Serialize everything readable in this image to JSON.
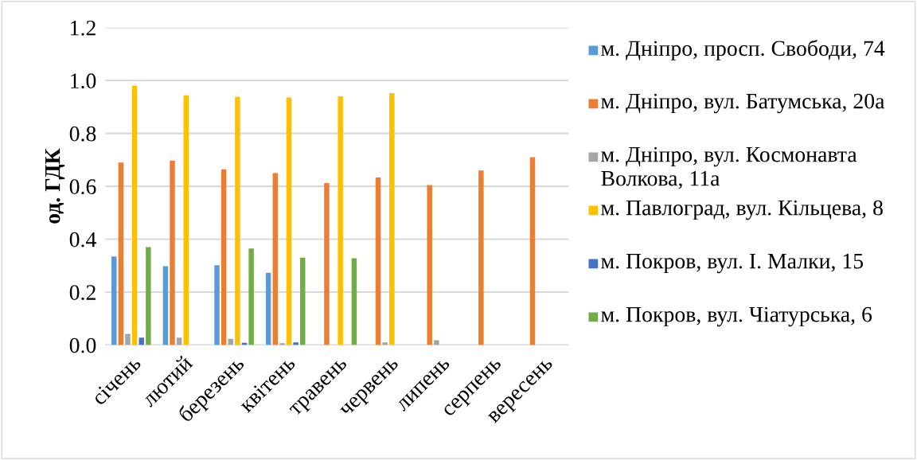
{
  "chart_data": {
    "type": "bar",
    "ylabel": "од. ГДК",
    "categories": [
      "січень",
      "лютий",
      "березень",
      "квітень",
      "травень",
      "червень",
      "липень",
      "серпень",
      "вересень"
    ],
    "series": [
      {
        "name": "м. Дніпро, просп. Свободи, 74",
        "color": "#5b9bd5",
        "values": [
          0.335,
          0.298,
          0.302,
          0.273,
          null,
          null,
          null,
          null,
          null
        ]
      },
      {
        "name": "м. Дніпро, вул. Батумська, 20а",
        "color": "#ed7d31",
        "values": [
          0.69,
          0.697,
          0.664,
          0.65,
          0.612,
          0.633,
          0.605,
          0.66,
          0.71
        ]
      },
      {
        "name": "м. Дніпро, вул. Космонавта Волкова, 11а",
        "color": "#a5a5a5",
        "values": [
          0.042,
          0.028,
          0.023,
          0.007,
          null,
          0.01,
          0.018,
          null,
          null
        ]
      },
      {
        "name": "м. Павлоград, вул. Кільцева, 8",
        "color": "#ffc000",
        "values": [
          0.98,
          0.944,
          0.938,
          0.936,
          0.94,
          0.952,
          null,
          null,
          null
        ]
      },
      {
        "name": "м. Покров, вул. І. Малки, 15",
        "color": "#4472c4",
        "values": [
          0.028,
          null,
          0.008,
          0.01,
          null,
          null,
          null,
          null,
          null
        ]
      },
      {
        "name": "м. Покров, вул. Чіатурська, 6",
        "color": "#70ad47",
        "values": [
          0.37,
          null,
          0.365,
          0.33,
          0.328,
          null,
          null,
          null,
          null
        ]
      }
    ],
    "ylim": [
      0,
      1.2
    ],
    "yticks": [
      {
        "value": 0,
        "label": "0.0"
      },
      {
        "value": 0.2,
        "label": "0.2"
      },
      {
        "value": 0.4,
        "label": "0.4"
      },
      {
        "value": 0.6,
        "label": "0.6"
      },
      {
        "value": 0.8,
        "label": "0.8"
      },
      {
        "value": 1.0,
        "label": "1.0"
      },
      {
        "value": 1.2,
        "label": "1.2"
      }
    ],
    "grid": "y",
    "legend": "right"
  }
}
